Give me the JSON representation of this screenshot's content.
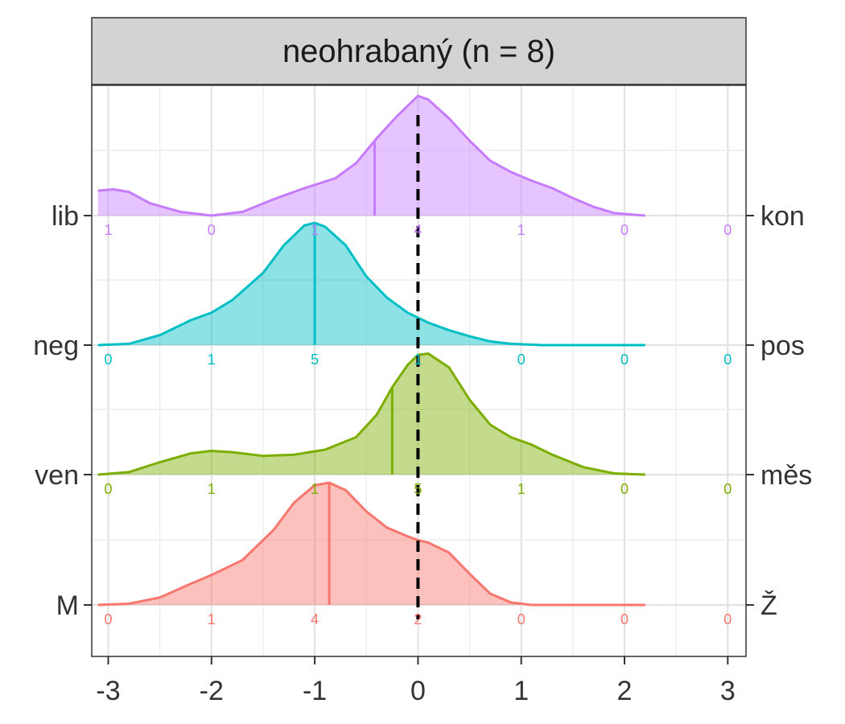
{
  "chart_data": {
    "type": "ridgeline-density",
    "panel_title": "neohrabaný (n = 8)",
    "x_ticks": [
      -3,
      -2,
      -1,
      0,
      1,
      2,
      3
    ],
    "x_tick_labels": [
      "-3",
      "-2",
      "-1",
      "0",
      "1",
      "2",
      "3"
    ],
    "xlim": [
      -3.1,
      3.1
    ],
    "reference_line_x": 0,
    "count_positions": [
      -3,
      -2,
      -1,
      0,
      1,
      2,
      3
    ],
    "series": [
      {
        "left_label": "M",
        "right_label": "Ž",
        "color": "#F8766D",
        "mean": -0.86,
        "counts": [
          "0",
          "1",
          "4",
          "2",
          "0",
          "0",
          "0"
        ],
        "density": [
          [
            -3.1,
            0
          ],
          [
            -2.8,
            0.01
          ],
          [
            -2.5,
            0.06
          ],
          [
            -2.2,
            0.17
          ],
          [
            -2.0,
            0.24
          ],
          [
            -1.7,
            0.36
          ],
          [
            -1.4,
            0.6
          ],
          [
            -1.2,
            0.82
          ],
          [
            -1.0,
            0.96
          ],
          [
            -0.86,
            0.98
          ],
          [
            -0.7,
            0.92
          ],
          [
            -0.5,
            0.75
          ],
          [
            -0.3,
            0.62
          ],
          [
            -0.1,
            0.55
          ],
          [
            0.0,
            0.52
          ],
          [
            0.1,
            0.5
          ],
          [
            0.3,
            0.42
          ],
          [
            0.5,
            0.25
          ],
          [
            0.7,
            0.09
          ],
          [
            0.9,
            0.02
          ],
          [
            1.1,
            0
          ],
          [
            2.2,
            0
          ]
        ]
      },
      {
        "left_label": "ven",
        "right_label": "měs",
        "color": "#7CAE00",
        "mean": -0.25,
        "counts": [
          "0",
          "1",
          "1",
          "5",
          "1",
          "0",
          "0"
        ],
        "density": [
          [
            -3.1,
            0
          ],
          [
            -2.8,
            0.02
          ],
          [
            -2.5,
            0.1
          ],
          [
            -2.2,
            0.17
          ],
          [
            -2.0,
            0.19
          ],
          [
            -1.8,
            0.18
          ],
          [
            -1.5,
            0.15
          ],
          [
            -1.2,
            0.16
          ],
          [
            -0.9,
            0.2
          ],
          [
            -0.6,
            0.3
          ],
          [
            -0.4,
            0.48
          ],
          [
            -0.25,
            0.7
          ],
          [
            -0.1,
            0.88
          ],
          [
            0.0,
            0.96
          ],
          [
            0.1,
            0.97
          ],
          [
            0.3,
            0.86
          ],
          [
            0.5,
            0.6
          ],
          [
            0.7,
            0.4
          ],
          [
            0.9,
            0.3
          ],
          [
            1.1,
            0.24
          ],
          [
            1.3,
            0.16
          ],
          [
            1.6,
            0.06
          ],
          [
            1.9,
            0.01
          ],
          [
            2.2,
            0
          ]
        ]
      },
      {
        "left_label": "neg",
        "right_label": "pos",
        "color": "#00BFC4",
        "mean": -1.0,
        "counts": [
          "0",
          "1",
          "5",
          "1",
          "0",
          "0",
          "0"
        ],
        "density": [
          [
            -3.1,
            0
          ],
          [
            -2.8,
            0.01
          ],
          [
            -2.5,
            0.08
          ],
          [
            -2.2,
            0.2
          ],
          [
            -2.0,
            0.26
          ],
          [
            -1.8,
            0.36
          ],
          [
            -1.5,
            0.58
          ],
          [
            -1.3,
            0.8
          ],
          [
            -1.1,
            0.96
          ],
          [
            -1.0,
            0.98
          ],
          [
            -0.9,
            0.95
          ],
          [
            -0.7,
            0.8
          ],
          [
            -0.5,
            0.55
          ],
          [
            -0.3,
            0.38
          ],
          [
            -0.1,
            0.26
          ],
          [
            0.1,
            0.18
          ],
          [
            0.3,
            0.12
          ],
          [
            0.5,
            0.07
          ],
          [
            0.7,
            0.03
          ],
          [
            0.9,
            0.01
          ],
          [
            1.2,
            0
          ],
          [
            2.2,
            0
          ]
        ]
      },
      {
        "left_label": "lib",
        "right_label": "kon",
        "color": "#C77CFF",
        "mean": -0.42,
        "counts": [
          "1",
          "0",
          "1",
          "4",
          "1",
          "0",
          "0"
        ],
        "density": [
          [
            -3.1,
            0.2
          ],
          [
            -2.95,
            0.21
          ],
          [
            -2.8,
            0.19
          ],
          [
            -2.6,
            0.1
          ],
          [
            -2.3,
            0.03
          ],
          [
            -2.0,
            0.0
          ],
          [
            -1.7,
            0.03
          ],
          [
            -1.4,
            0.13
          ],
          [
            -1.1,
            0.22
          ],
          [
            -0.8,
            0.3
          ],
          [
            -0.6,
            0.42
          ],
          [
            -0.4,
            0.62
          ],
          [
            -0.2,
            0.8
          ],
          [
            0.0,
            0.96
          ],
          [
            0.1,
            0.93
          ],
          [
            0.3,
            0.78
          ],
          [
            0.5,
            0.6
          ],
          [
            0.7,
            0.44
          ],
          [
            0.9,
            0.35
          ],
          [
            1.1,
            0.28
          ],
          [
            1.3,
            0.22
          ],
          [
            1.5,
            0.14
          ],
          [
            1.7,
            0.07
          ],
          [
            1.9,
            0.02
          ],
          [
            2.2,
            0
          ]
        ]
      }
    ]
  }
}
